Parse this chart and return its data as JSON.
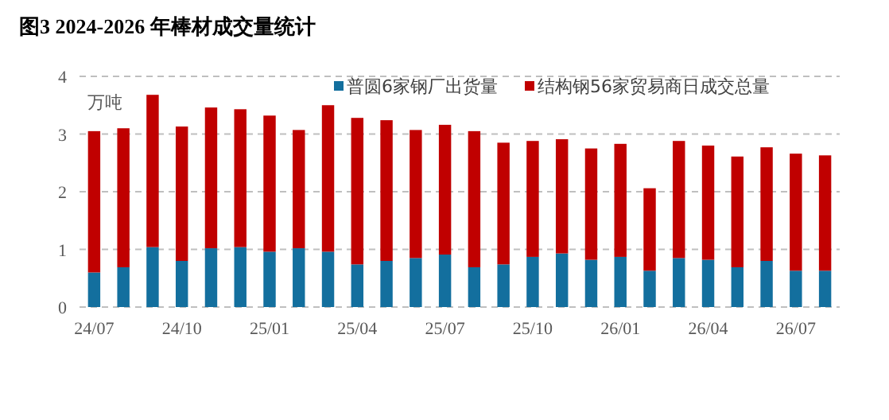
{
  "chart_data": {
    "type": "bar",
    "title": "图3 2024-2026 年棒材成交量统计",
    "ylabel": "万吨",
    "stacked": true,
    "grid": "y",
    "legend": "top",
    "categories": [
      "24/07",
      null,
      null,
      "24/10",
      null,
      null,
      "25/01",
      null,
      null,
      "25/04",
      null,
      null,
      "25/07",
      null,
      null,
      "25/10",
      null,
      null,
      "26/01",
      null,
      null,
      "26/04",
      null,
      null,
      "26/07",
      null
    ],
    "ylim": [
      0,
      4
    ],
    "yticks": [
      0,
      1,
      2,
      3,
      4
    ],
    "series": [
      {
        "name": "普圆6家钢厂出货量",
        "color": "#136f9e",
        "values": [
          0.6,
          0.69,
          1.04,
          0.8,
          1.02,
          1.04,
          0.96,
          1.02,
          0.96,
          0.74,
          0.8,
          0.85,
          0.91,
          0.69,
          0.74,
          0.87,
          0.93,
          0.82,
          0.87,
          0.63,
          0.85,
          0.82,
          0.69,
          0.8,
          0.63,
          0.63
        ]
      },
      {
        "name": "结构钢56家贸易商日成交总量",
        "color": "#c00000",
        "values": [
          2.45,
          2.41,
          2.64,
          2.33,
          2.44,
          2.39,
          2.36,
          2.05,
          2.54,
          2.54,
          2.44,
          2.22,
          2.25,
          2.36,
          2.11,
          2.01,
          1.98,
          1.93,
          1.96,
          1.43,
          2.03,
          1.98,
          1.92,
          1.97,
          2.03,
          2.0
        ]
      }
    ]
  }
}
